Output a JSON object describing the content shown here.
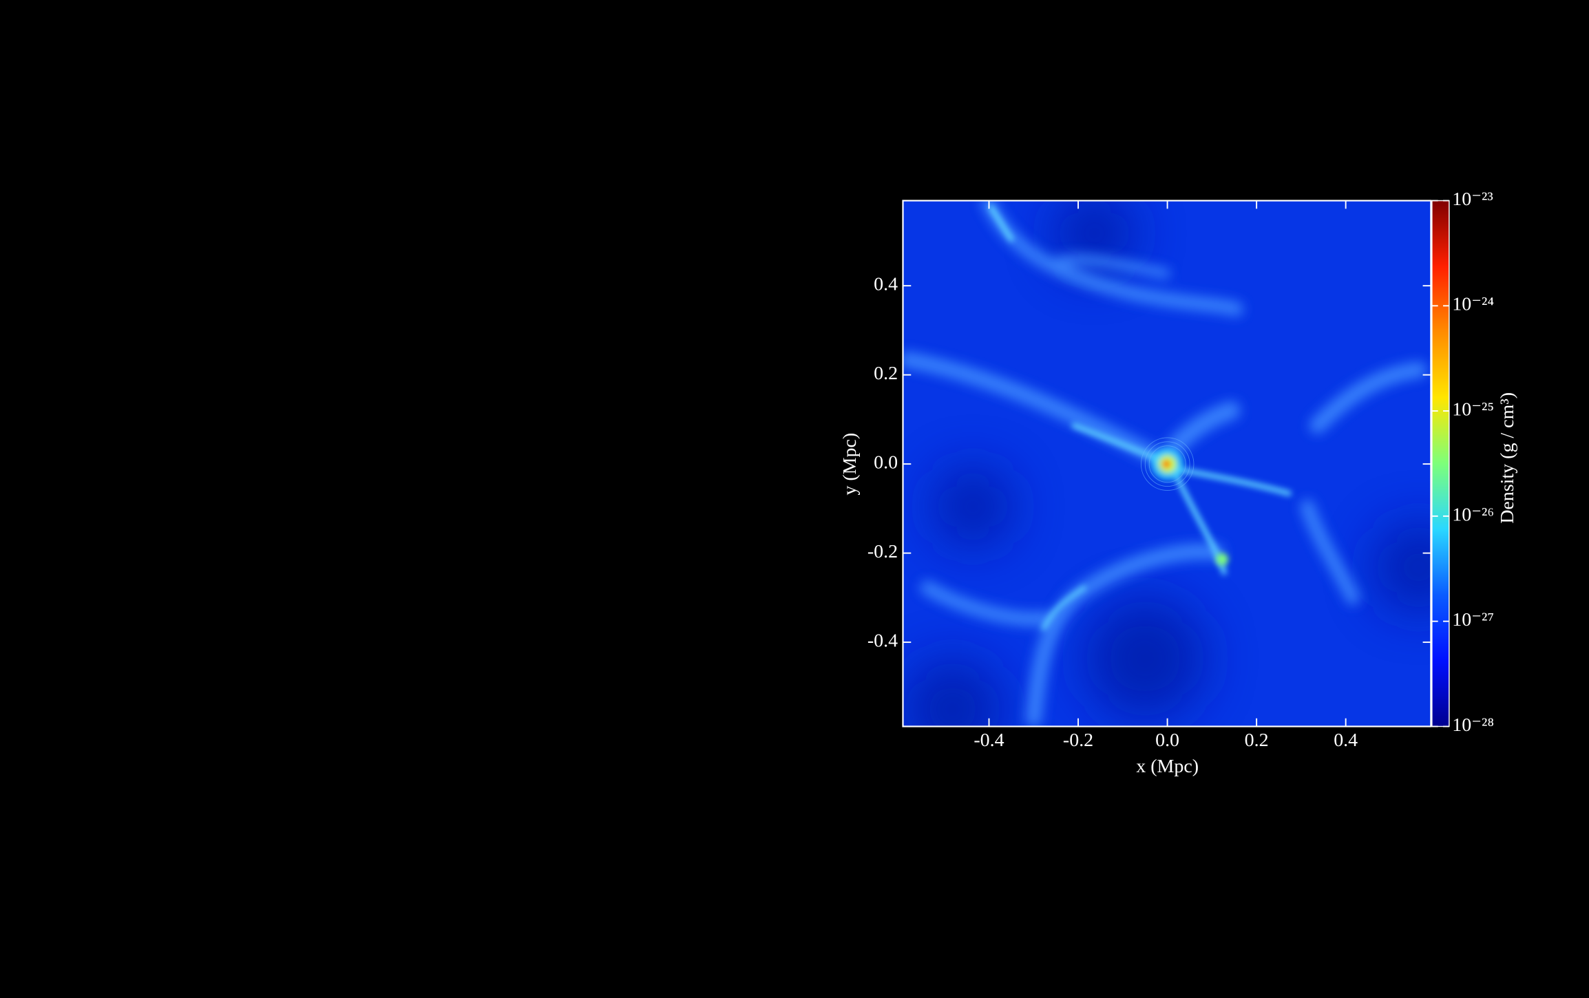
{
  "chart_data": {
    "type": "slice",
    "xlabel": "x (Mpc)",
    "ylabel": "y (Mpc)",
    "xlim": [
      -0.593,
      0.591
    ],
    "ylim": [
      -0.589,
      0.591
    ],
    "xticks": [
      -0.4,
      -0.2,
      {
        "value": 0,
        "label": "0.0"
      },
      0.2,
      0.4
    ],
    "yticks": [
      -0.4,
      -0.2,
      {
        "value": 0,
        "label": "0.0"
      },
      0.2,
      0.4
    ],
    "colorbar": {
      "label": "Density (g / cm³)",
      "log": true,
      "lim": [
        1e-28,
        1e-23
      ],
      "ticks": [
        {
          "value": 1e-28,
          "label": "10⁻²⁸"
        },
        {
          "value": 1e-27,
          "label": "10⁻²⁷"
        },
        {
          "value": 1e-26,
          "label": "10⁻²⁶"
        },
        {
          "value": 1e-25,
          "label": "10⁻²⁵"
        },
        {
          "value": 1e-24,
          "label": "10⁻²⁴"
        },
        {
          "value": 1e-23,
          "label": "10⁻²³"
        }
      ],
      "colormap": [
        "#00008f",
        "#0010ff",
        "#0a5cff",
        "#2ad7ff",
        "#7dff7a",
        "#ffe600",
        "#ff8c00",
        "#ff2000",
        "#800000"
      ]
    }
  }
}
